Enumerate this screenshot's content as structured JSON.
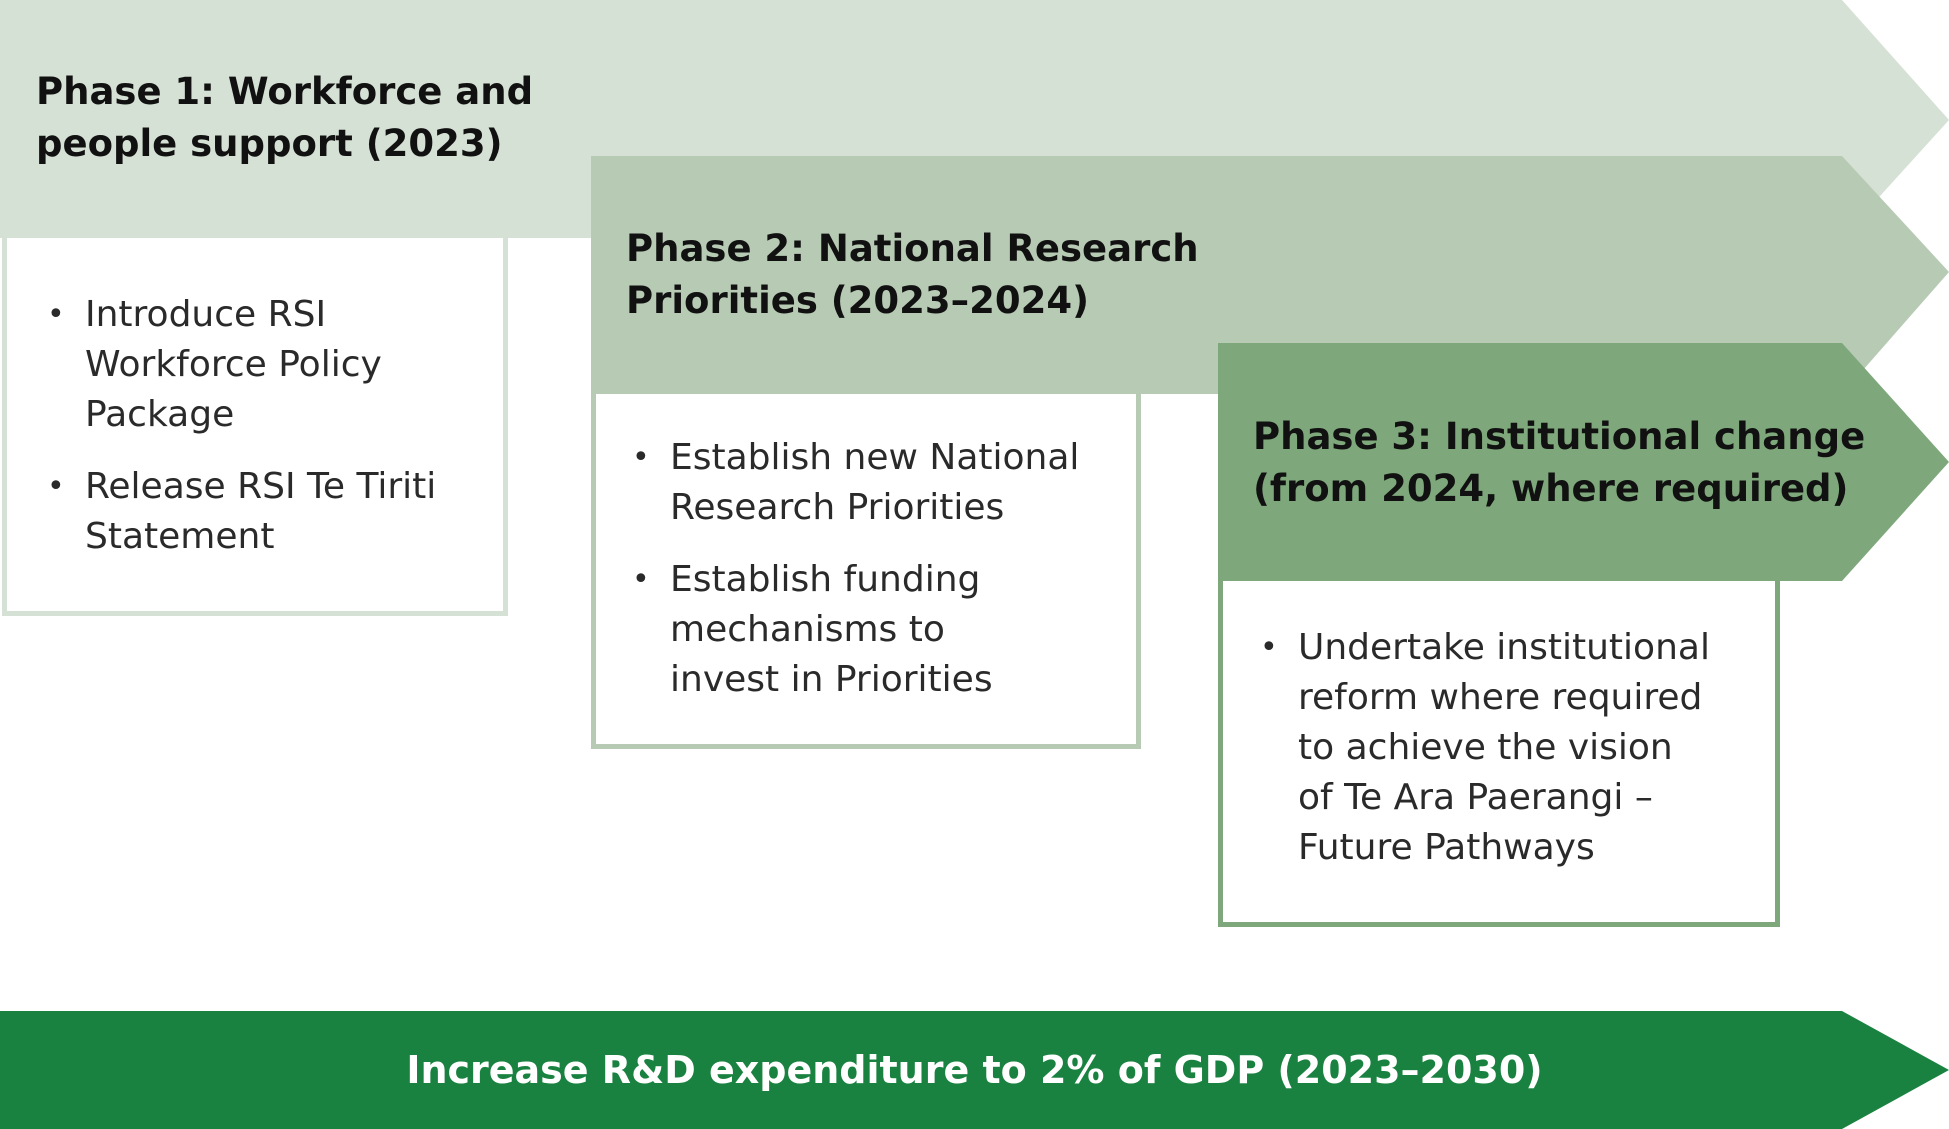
{
  "colors": {
    "phase1_fill": "#d6e1d5",
    "phase1_border": "#d6e1d5",
    "phase2_fill": "#b7cbb4",
    "phase2_border": "#b7cbb4",
    "phase3_fill": "#7ea87b",
    "phase3_border": "#7ea87b",
    "goal_fill": "#1a8240",
    "goal_text": "#ffffff"
  },
  "phases": [
    {
      "title_line1": "Phase 1: Workforce and",
      "title_line2": "people support (2023)",
      "items": [
        {
          "lines": [
            "Introduce RSI",
            "Workforce Policy",
            "Package"
          ]
        },
        {
          "lines": [
            "Release RSI Te Tiriti",
            "Statement"
          ]
        }
      ]
    },
    {
      "title_line1": "Phase 2: National Research",
      "title_line2": "Priorities (2023–2024)",
      "items": [
        {
          "lines": [
            "Establish new National",
            "Research Priorities"
          ]
        },
        {
          "lines": [
            "Establish funding",
            "mechanisms to",
            "invest in Priorities"
          ]
        }
      ]
    },
    {
      "title_line1": "Phase 3: Institutional change",
      "title_line2": "(from 2024, where required)",
      "items": [
        {
          "lines": [
            "Undertake institutional",
            "reform where required",
            "to achieve the vision",
            "of Te Ara Paerangi –",
            "Future Pathways"
          ]
        }
      ]
    }
  ],
  "goal": {
    "label": "Increase R&D expenditure to 2% of GDP (2023–2030)"
  },
  "bullet_glyph": "•"
}
